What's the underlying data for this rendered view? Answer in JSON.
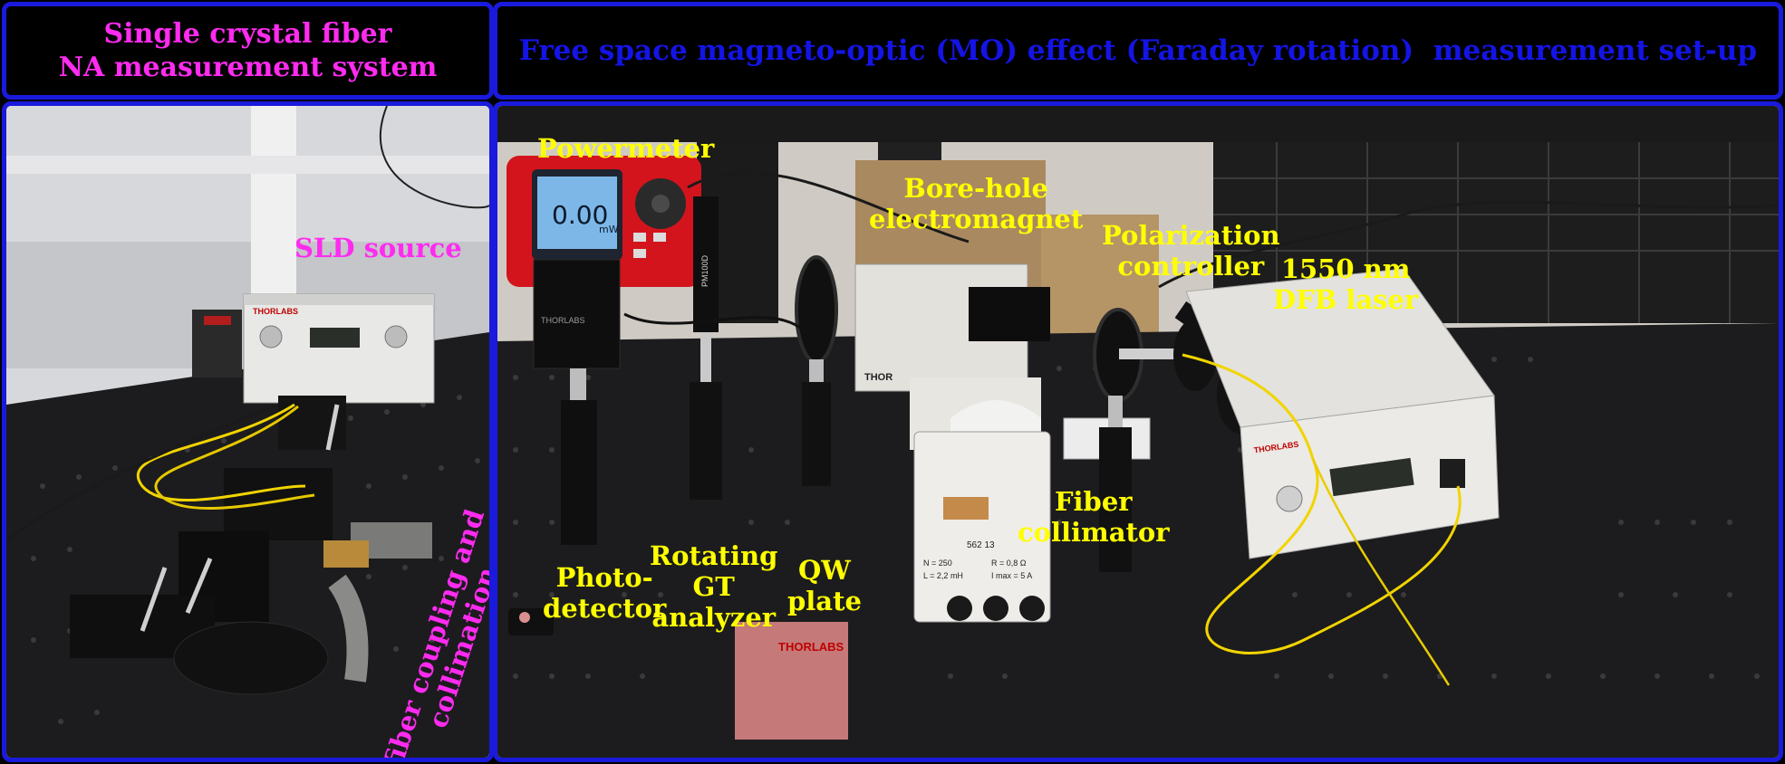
{
  "headers": {
    "left": [
      "Single crystal fiber",
      "NA measurement system"
    ],
    "right": "Free space magneto-optic (MO) effect (Faraday rotation)  measurement set-up"
  },
  "colors": {
    "border": "#1a1adc",
    "left_header_text": "#ff2bf0",
    "right_header_text": "#1414e6",
    "label_yellow": "#ffff00",
    "label_magenta": "#ff2bf0",
    "table_surface": "#1c1c1e",
    "fiber_yellow": "#f2d400"
  },
  "left_labels": {
    "sld_source": "SLD source",
    "fiber_coupling": [
      "fiber coupling and",
      "collimation"
    ]
  },
  "right_labels": {
    "powermeter": "Powermeter",
    "electromagnet": [
      "Bore-hole",
      "electromagnet"
    ],
    "polarization": [
      "Polarization",
      "controller"
    ],
    "laser": [
      "1550 nm",
      "DFB laser"
    ],
    "photodetector": [
      "Photo-",
      "detector"
    ],
    "analyzer": [
      "Rotating",
      "GT",
      "analyzer"
    ],
    "qw_plate": [
      "QW",
      "plate"
    ],
    "collimator": [
      "Fiber",
      "collimator"
    ]
  },
  "device_text": {
    "powermeter_reading": "0.00",
    "powermeter_unit": "mW",
    "powermeter_side": "PM100D",
    "sld_brand": "THORLABS",
    "laser_brand": "THORLABS",
    "magnet_brand": "THOR",
    "magnet_model": "562 13",
    "magnet_specs": [
      "N = 250",
      "R = 0,8 Ω",
      "L = 2,2 mH",
      "I max = 5 A"
    ],
    "detector_brand": "THORLABS",
    "bag_brand": "THORLABS"
  },
  "icons": [
    "powermeter",
    "photodetector",
    "electromagnet",
    "laser-source",
    "fiber-collimator",
    "polarization-paddles",
    "optical-table"
  ]
}
